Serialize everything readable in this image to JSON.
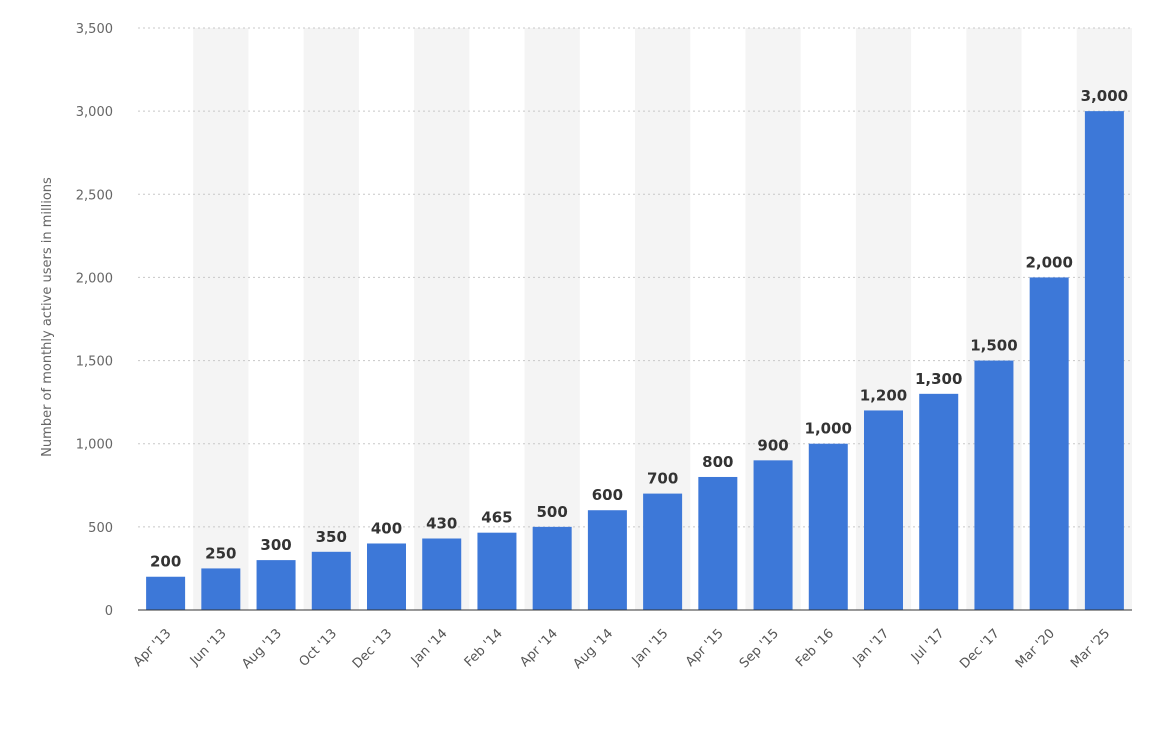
{
  "chart_data": {
    "type": "bar",
    "title": "",
    "xlabel": "",
    "ylabel": "Number of monthly active users in millions",
    "categories": [
      "Apr '13",
      "Jun '13",
      "Aug '13",
      "Oct '13",
      "Dec '13",
      "Jan '14",
      "Feb '14",
      "Apr '14",
      "Aug '14",
      "Jan '15",
      "Apr '15",
      "Sep '15",
      "Feb '16",
      "Jan '17",
      "Jul '17",
      "Dec '17",
      "Mar '20",
      "Mar '25"
    ],
    "values": [
      200,
      250,
      300,
      350,
      400,
      430,
      465,
      500,
      600,
      700,
      800,
      900,
      1000,
      1200,
      1300,
      1500,
      2000,
      3000
    ],
    "data_labels": [
      "200",
      "250",
      "300",
      "350",
      "400",
      "430",
      "465",
      "500",
      "600",
      "700",
      "800",
      "900",
      "1,000",
      "1,200",
      "1,300",
      "1,500",
      "2,000",
      "3,000"
    ],
    "ylim": [
      0,
      3500
    ],
    "yticks": [
      0,
      500,
      1000,
      1500,
      2000,
      2500,
      3000,
      3500
    ],
    "ytick_labels": [
      "0",
      "500",
      "1,000",
      "1,500",
      "2,000",
      "2,500",
      "3,000",
      "3,500"
    ],
    "grid": true,
    "bar_color": "#3d78d8",
    "legend": "none"
  }
}
